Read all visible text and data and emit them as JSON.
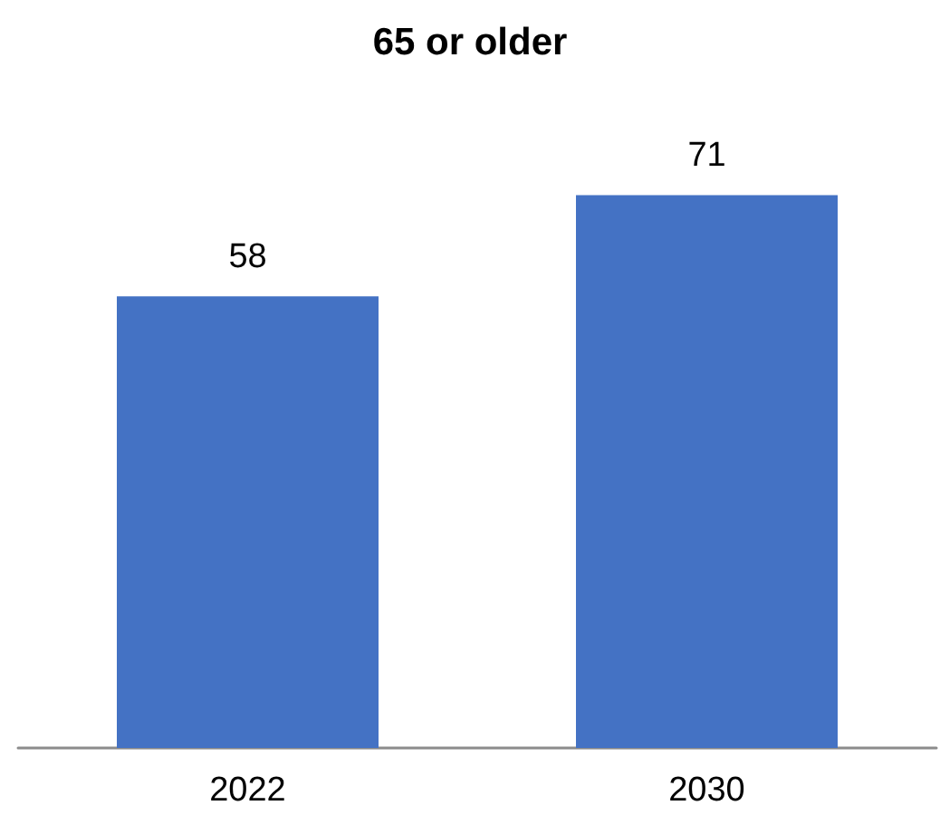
{
  "chart_data": {
    "type": "bar",
    "title": "65 or older",
    "categories": [
      "2022",
      "2030"
    ],
    "values": [
      58,
      71
    ],
    "color": "#4472c4",
    "data_labels": true
  }
}
